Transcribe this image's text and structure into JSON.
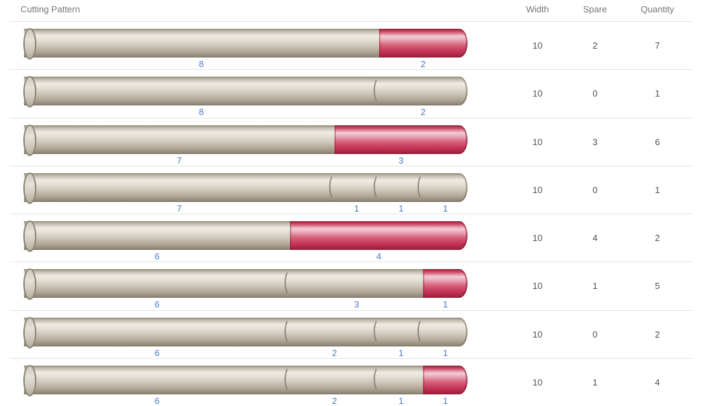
{
  "header": {
    "pattern": "Cutting Pattern",
    "width": "Width",
    "spare": "Spare",
    "quantity": "Quantity"
  },
  "colors": {
    "bar_piece_beige": "#d6cfc0",
    "bar_piece_highlight": "#efece4",
    "bar_spare_red": "#c43656",
    "bar_spare_highlight": "#f2ccd4",
    "segment_label_blue": "#4d78c5",
    "header_text_gray": "#757575",
    "value_text_gray": "#4f4f4f",
    "row_divider_gray": "#e3e3e3"
  },
  "rows": [
    {
      "width": 10,
      "spare": 2,
      "quantity": 7,
      "segments": [
        {
          "size": 8,
          "type": "piece"
        },
        {
          "size": 2,
          "type": "spare"
        }
      ]
    },
    {
      "width": 10,
      "spare": 0,
      "quantity": 1,
      "segments": [
        {
          "size": 8,
          "type": "piece"
        },
        {
          "size": 2,
          "type": "piece"
        }
      ]
    },
    {
      "width": 10,
      "spare": 3,
      "quantity": 6,
      "segments": [
        {
          "size": 7,
          "type": "piece"
        },
        {
          "size": 3,
          "type": "spare"
        }
      ]
    },
    {
      "width": 10,
      "spare": 0,
      "quantity": 1,
      "segments": [
        {
          "size": 7,
          "type": "piece"
        },
        {
          "size": 1,
          "type": "piece"
        },
        {
          "size": 1,
          "type": "piece"
        },
        {
          "size": 1,
          "type": "piece"
        }
      ]
    },
    {
      "width": 10,
      "spare": 4,
      "quantity": 2,
      "segments": [
        {
          "size": 6,
          "type": "piece"
        },
        {
          "size": 4,
          "type": "spare"
        }
      ]
    },
    {
      "width": 10,
      "spare": 1,
      "quantity": 5,
      "segments": [
        {
          "size": 6,
          "type": "piece"
        },
        {
          "size": 3,
          "type": "piece"
        },
        {
          "size": 1,
          "type": "spare"
        }
      ]
    },
    {
      "width": 10,
      "spare": 0,
      "quantity": 2,
      "segments": [
        {
          "size": 6,
          "type": "piece"
        },
        {
          "size": 2,
          "type": "piece"
        },
        {
          "size": 1,
          "type": "piece"
        },
        {
          "size": 1,
          "type": "piece"
        }
      ]
    },
    {
      "width": 10,
      "spare": 1,
      "quantity": 4,
      "segments": [
        {
          "size": 6,
          "type": "piece"
        },
        {
          "size": 2,
          "type": "piece"
        },
        {
          "size": 1,
          "type": "piece"
        },
        {
          "size": 1,
          "type": "spare"
        }
      ]
    }
  ]
}
